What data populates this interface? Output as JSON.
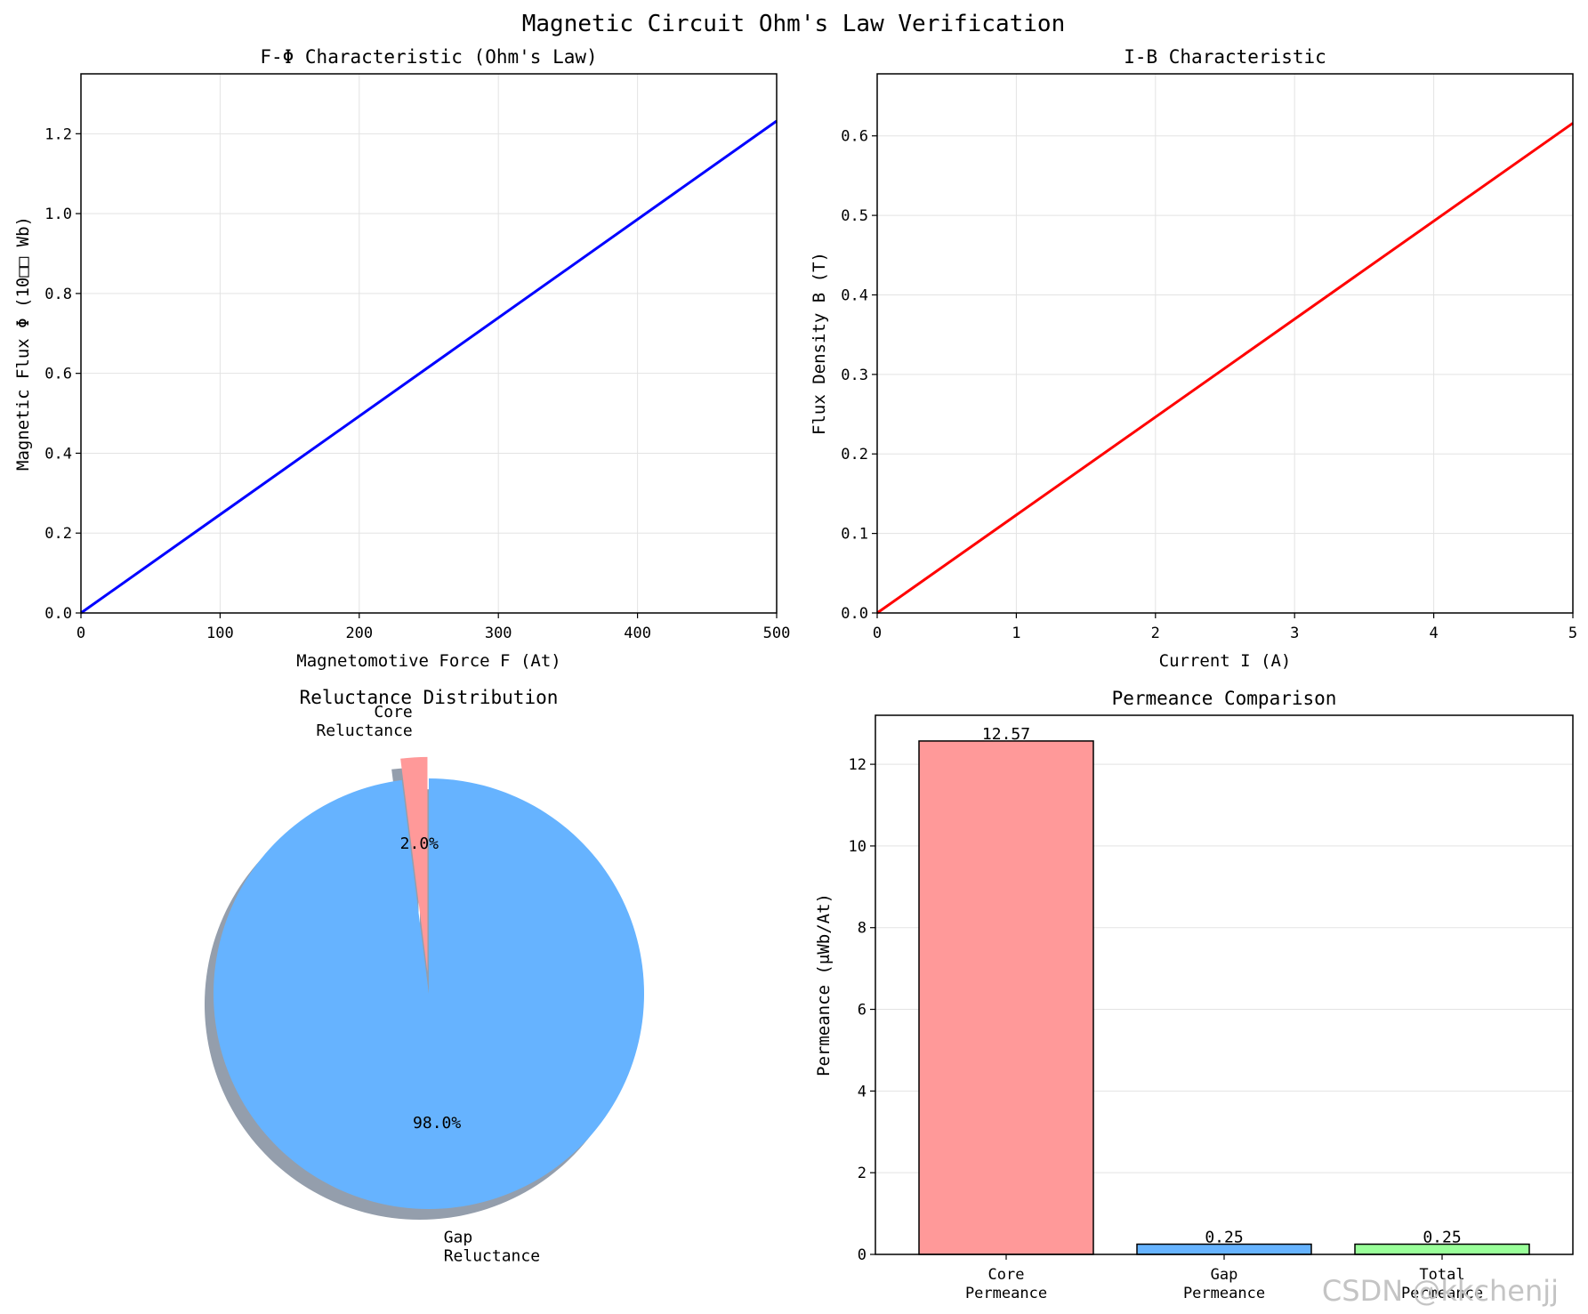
{
  "suptitle": "Magnetic Circuit Ohm's Law Verification",
  "watermark": "CSDN @kkchenjj",
  "chart_data": [
    {
      "type": "line",
      "title": "F-Φ Characteristic (Ohm's Law)",
      "xlabel": "Magnetomotive Force F (At)",
      "ylabel": "Magnetic Flux Φ (10□□ Wb)",
      "xlim": [
        0,
        500
      ],
      "ylim": [
        0,
        1.35
      ],
      "xticks": [
        "0",
        "100",
        "200",
        "300",
        "400",
        "500"
      ],
      "yticks": [
        "0.0",
        "0.2",
        "0.4",
        "0.6",
        "0.8",
        "1.0",
        "1.2"
      ],
      "grid": true,
      "color": "#0000ff",
      "x": [
        0,
        500
      ],
      "y": [
        0,
        1.232
      ]
    },
    {
      "type": "line",
      "title": "I-B Characteristic",
      "xlabel": "Current I (A)",
      "ylabel": "Flux Density B (T)",
      "xlim": [
        0,
        5
      ],
      "ylim": [
        0,
        0.678
      ],
      "xticks": [
        "0",
        "1",
        "2",
        "3",
        "4",
        "5"
      ],
      "yticks": [
        "0.0",
        "0.1",
        "0.2",
        "0.3",
        "0.4",
        "0.5",
        "0.6"
      ],
      "grid": true,
      "color": "#ff0000",
      "x": [
        0,
        5
      ],
      "y": [
        0,
        0.616
      ]
    },
    {
      "type": "pie",
      "title": "Reluctance Distribution",
      "labels": [
        "Core\nReluctance",
        "Gap\nReluctance"
      ],
      "values": [
        2.0,
        98.0
      ],
      "pct_labels": [
        "2.0%",
        "98.0%"
      ],
      "colors": [
        "#ff9999",
        "#66b3ff"
      ],
      "explode": [
        0.1,
        0
      ],
      "shadow": true,
      "startangle": 90
    },
    {
      "type": "bar",
      "title": "Permeance Comparison",
      "ylabel": "Permeance (μWb/At)",
      "categories": [
        "Core\nPermeance",
        "Gap\nPermeance",
        "Total\nPermeance"
      ],
      "values": [
        12.57,
        0.25,
        0.25
      ],
      "value_labels": [
        "12.57",
        "0.25",
        "0.25"
      ],
      "colors": [
        "#ff9999",
        "#66b3ff",
        "#99ff99"
      ],
      "ylim": [
        0,
        13.2
      ],
      "yticks": [
        "0",
        "2",
        "4",
        "6",
        "8",
        "10",
        "12"
      ],
      "grid": true
    }
  ]
}
